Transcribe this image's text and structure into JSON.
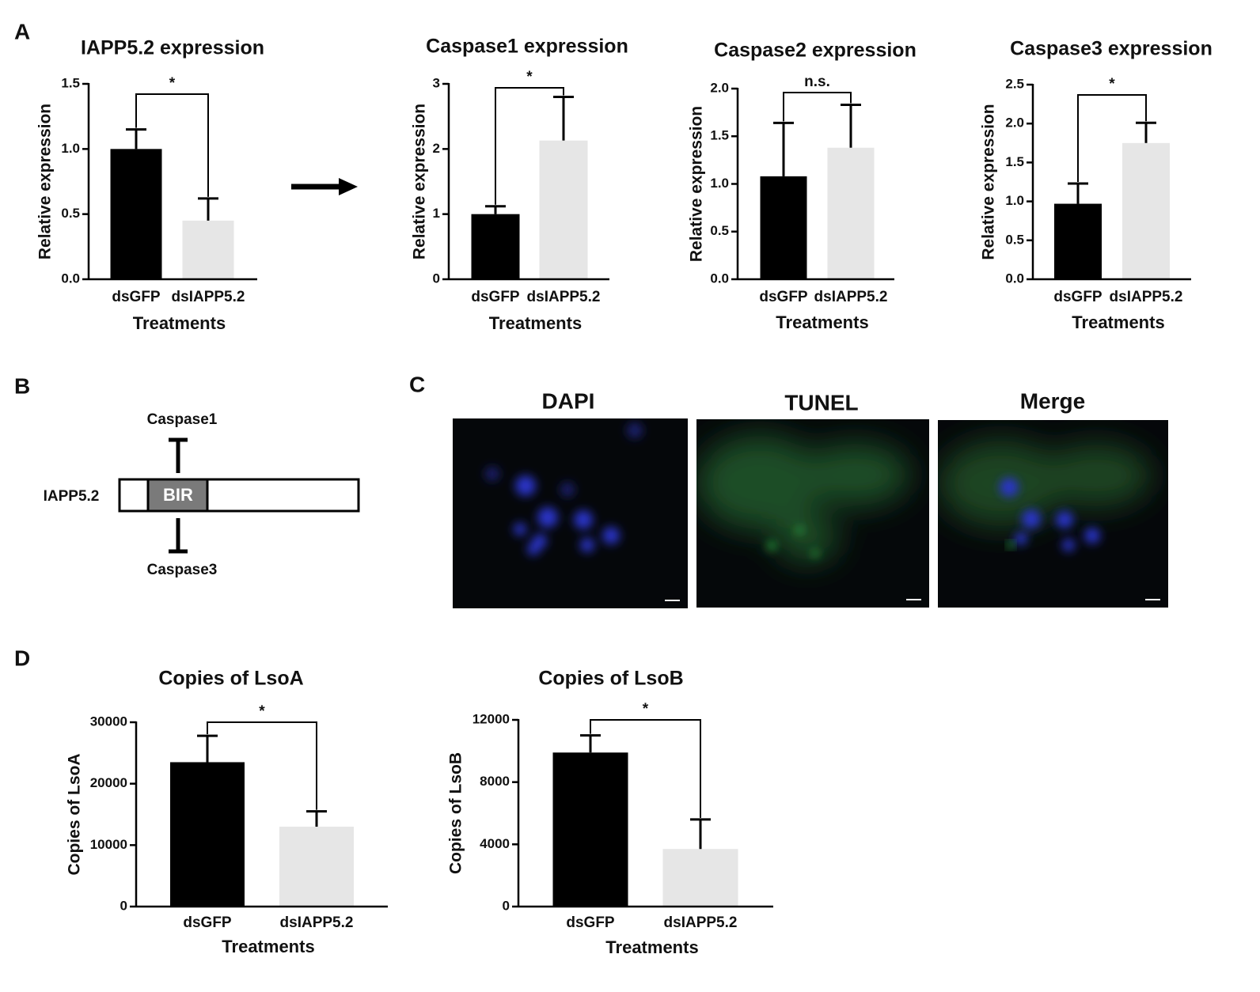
{
  "panel_labels": [
    "A",
    "B",
    "C",
    "D"
  ],
  "chart_data": [
    {
      "type": "bar",
      "title": "IAPP5.2 expression",
      "xlabel": "Treatments",
      "ylabel": "Relative expression",
      "categories": [
        "dsGFP",
        "dsIAPP5.2"
      ],
      "values": [
        1.0,
        0.45
      ],
      "errors": [
        0.15,
        0.17
      ],
      "colors": [
        "#000000",
        "#e6e6e6"
      ],
      "ylim": [
        0,
        1.5
      ],
      "yticks": [
        {
          "value": 0,
          "label": "0.0"
        },
        0.5,
        {
          "value": 1,
          "label": "1.0"
        },
        1.5
      ],
      "annotation": "*"
    },
    {
      "type": "bar",
      "title": "Caspase1 expression",
      "xlabel": "Treatments",
      "ylabel": "Relative expression",
      "categories": [
        "dsGFP",
        "dsIAPP5.2"
      ],
      "values": [
        1.0,
        2.13
      ],
      "errors": [
        0.12,
        0.67
      ],
      "colors": [
        "#000000",
        "#e6e6e6"
      ],
      "ylim": [
        0,
        3
      ],
      "yticks": [
        0,
        1,
        2,
        3
      ],
      "annotation": "*"
    },
    {
      "type": "bar",
      "title": "Caspase2 expression",
      "xlabel": "Treatments",
      "ylabel": "Relative expression",
      "categories": [
        "dsGFP",
        "dsIAPP5.2"
      ],
      "values": [
        1.08,
        1.38
      ],
      "errors": [
        0.56,
        0.45
      ],
      "colors": [
        "#000000",
        "#e6e6e6"
      ],
      "ylim": [
        0,
        2
      ],
      "yticks": [
        {
          "value": 0,
          "label": "0.0"
        },
        0.5,
        {
          "value": 1,
          "label": "1.0"
        },
        1.5,
        {
          "value": 2,
          "label": "2.0"
        }
      ],
      "annotation": "n.s."
    },
    {
      "type": "bar",
      "title": "Caspase3 expression",
      "xlabel": "Treatments",
      "ylabel": "Relative expression",
      "categories": [
        "dsGFP",
        "dsIAPP5.2"
      ],
      "values": [
        0.97,
        1.75
      ],
      "errors": [
        0.26,
        0.26
      ],
      "colors": [
        "#000000",
        "#e6e6e6"
      ],
      "ylim": [
        0,
        2.5
      ],
      "yticks": [
        {
          "value": 0,
          "label": "0.0"
        },
        0.5,
        {
          "value": 1,
          "label": "1.0"
        },
        1.5,
        {
          "value": 2,
          "label": "2.0"
        },
        2.5
      ],
      "annotation": "*"
    },
    {
      "type": "bar",
      "title": "Copies of LsoA",
      "xlabel": "Treatments",
      "ylabel": "Copies of LsoA",
      "categories": [
        "dsGFP",
        "dsIAPP5.2"
      ],
      "values": [
        23500,
        13000
      ],
      "errors": [
        4300,
        2500
      ],
      "colors": [
        "#000000",
        "#e6e6e6"
      ],
      "ylim": [
        0,
        30000
      ],
      "yticks": [
        0,
        10000,
        20000,
        30000
      ],
      "annotation": "*"
    },
    {
      "type": "bar",
      "title": "Copies of LsoB",
      "xlabel": "Treatments",
      "ylabel": "Copies of LsoB",
      "categories": [
        "dsGFP",
        "dsIAPP5.2"
      ],
      "values": [
        9900,
        3700
      ],
      "errors": [
        1100,
        1900
      ],
      "colors": [
        "#000000",
        "#e6e6e6"
      ],
      "ylim": [
        0,
        12000
      ],
      "yticks": [
        0,
        4000,
        8000,
        12000
      ],
      "annotation": "*"
    }
  ],
  "diagram": {
    "protein": "IAPP5.2",
    "domain": "BIR",
    "top": "Caspase1",
    "bottom": "Caspase3"
  },
  "images": [
    "DAPI",
    "TUNEL",
    "Merge"
  ]
}
